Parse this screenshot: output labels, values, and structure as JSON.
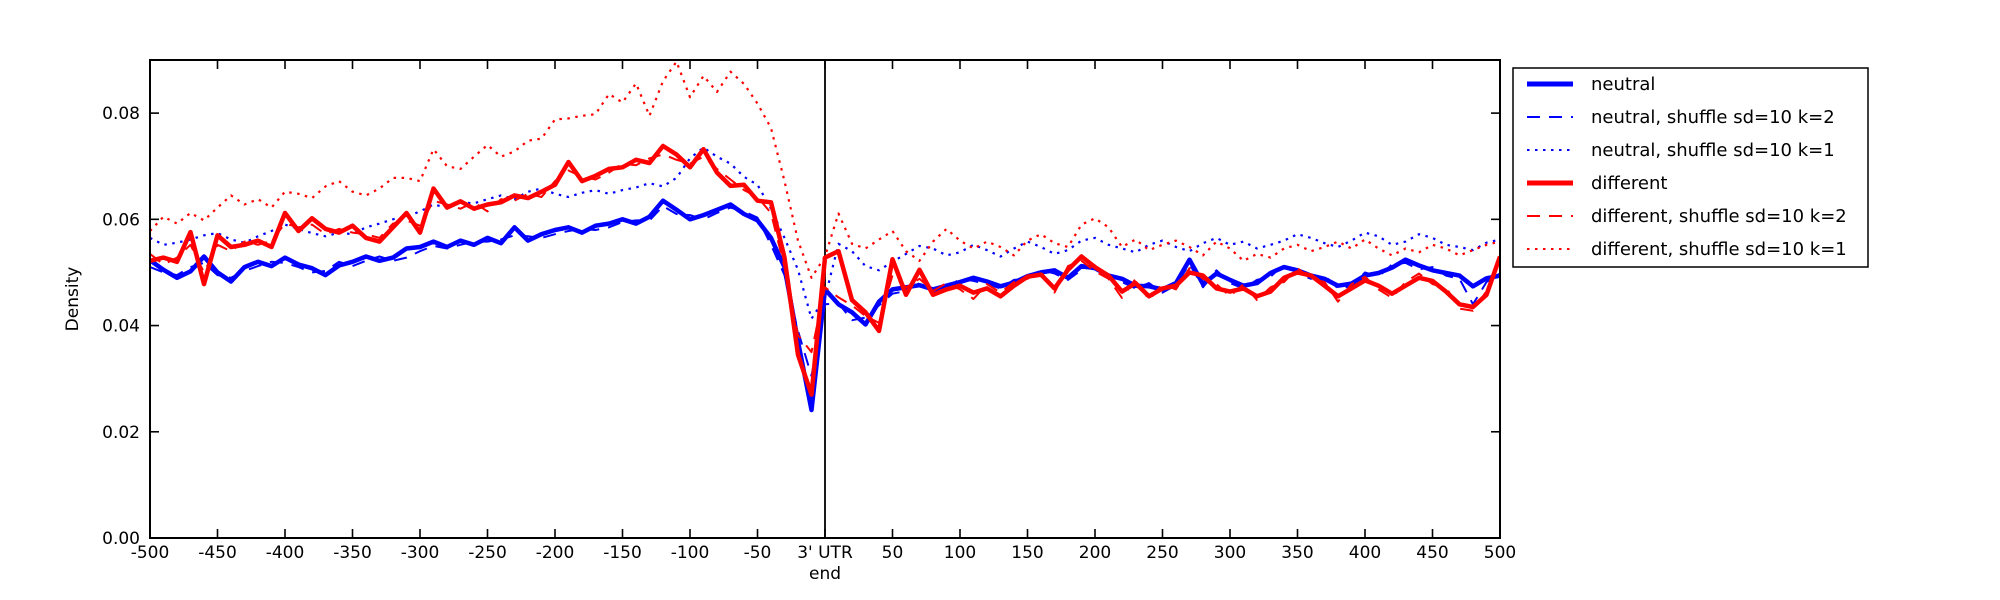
{
  "figure": {
    "background": "#ffffff",
    "axes_color": "#000000"
  },
  "chart_data": {
    "type": "line",
    "title": "",
    "xlabel": "",
    "ylabel": "Density",
    "xlim": [
      -500,
      500
    ],
    "ylim": [
      0,
      0.09
    ],
    "grid": false,
    "vline_x": 0,
    "x_start": -500,
    "x_step": 10,
    "xtick_values": [
      -500,
      -450,
      -400,
      -350,
      -300,
      -250,
      -200,
      -150,
      -100,
      -50,
      0,
      50,
      100,
      150,
      200,
      250,
      300,
      350,
      400,
      450,
      500
    ],
    "xtick_labels": [
      "-500",
      "-450",
      "-400",
      "-350",
      "-300",
      "-250",
      "-200",
      "-150",
      "-100",
      "-50",
      "3' UTR\nend",
      "50",
      "100",
      "150",
      "200",
      "250",
      "300",
      "350",
      "400",
      "450",
      "500"
    ],
    "ytick_values": [
      0.0,
      0.02,
      0.04,
      0.06,
      0.08
    ],
    "ytick_labels": [
      "0.00",
      "0.02",
      "0.04",
      "0.06",
      "0.08"
    ],
    "legend": {
      "position": "outside upper right"
    },
    "series": [
      {
        "name": "neutral",
        "color": "#0000ff",
        "style": "solid",
        "width": 4.5,
        "values": [
          0.0523,
          0.0505,
          0.049,
          0.0502,
          0.053,
          0.05,
          0.0483,
          0.051,
          0.052,
          0.0512,
          0.0528,
          0.0515,
          0.0508,
          0.0495,
          0.0513,
          0.052,
          0.053,
          0.0522,
          0.0528,
          0.0545,
          0.0548,
          0.0558,
          0.0548,
          0.056,
          0.0552,
          0.0565,
          0.0555,
          0.0585,
          0.056,
          0.0572,
          0.058,
          0.0585,
          0.0575,
          0.0588,
          0.0592,
          0.06,
          0.0592,
          0.0605,
          0.0635,
          0.0618,
          0.06,
          0.0608,
          0.0618,
          0.0628,
          0.061,
          0.0598,
          0.0565,
          0.051,
          0.037,
          0.0241,
          0.0468,
          0.044,
          0.0425,
          0.0402,
          0.0445,
          0.0468,
          0.0472,
          0.0476,
          0.0468,
          0.0475,
          0.0482,
          0.049,
          0.0483,
          0.0474,
          0.0481,
          0.0493,
          0.05,
          0.0504,
          0.049,
          0.0512,
          0.0508,
          0.0494,
          0.0488,
          0.0475,
          0.0474,
          0.0468,
          0.048,
          0.0524,
          0.0478,
          0.0498,
          0.0486,
          0.0475,
          0.048,
          0.0499,
          0.051,
          0.0504,
          0.0494,
          0.0488,
          0.0475,
          0.0479,
          0.0494,
          0.0499,
          0.0509,
          0.0524,
          0.0513,
          0.0504,
          0.0499,
          0.0494,
          0.0474,
          0.0489,
          0.0494
        ]
      },
      {
        "name": "neutral, shuffle sd=10 k=2",
        "color": "#0000ff",
        "style": "dashed",
        "width": 2,
        "values": [
          0.051,
          0.05,
          0.0495,
          0.051,
          0.0518,
          0.0495,
          0.049,
          0.0503,
          0.0512,
          0.052,
          0.0518,
          0.051,
          0.05,
          0.0503,
          0.052,
          0.0512,
          0.0522,
          0.053,
          0.0522,
          0.0528,
          0.054,
          0.055,
          0.0545,
          0.0552,
          0.0558,
          0.0558,
          0.0562,
          0.057,
          0.0568,
          0.0565,
          0.0572,
          0.0578,
          0.0582,
          0.058,
          0.0585,
          0.0595,
          0.0598,
          0.0598,
          0.0625,
          0.061,
          0.0608,
          0.06,
          0.0612,
          0.0622,
          0.0615,
          0.0603,
          0.0552,
          0.0495,
          0.039,
          0.0305,
          0.044,
          0.0442,
          0.041,
          0.0415,
          0.0438,
          0.046,
          0.0465,
          0.048,
          0.0462,
          0.047,
          0.0488,
          0.0484,
          0.0478,
          0.047,
          0.0486,
          0.0488,
          0.0505,
          0.0498,
          0.0486,
          0.0505,
          0.0513,
          0.0488,
          0.0482,
          0.047,
          0.048,
          0.0462,
          0.0476,
          0.0516,
          0.0472,
          0.0504,
          0.048,
          0.047,
          0.0486,
          0.0492,
          0.0515,
          0.0498,
          0.0488,
          0.0494,
          0.047,
          0.0474,
          0.05,
          0.0492,
          0.0515,
          0.0518,
          0.0506,
          0.051,
          0.0494,
          0.0488,
          0.044,
          0.0482,
          0.0498
        ]
      },
      {
        "name": "neutral, shuffle sd=10 k=1",
        "color": "#0000ff",
        "style": "dotted",
        "width": 2.2,
        "values": [
          0.0565,
          0.0552,
          0.0556,
          0.0562,
          0.057,
          0.0574,
          0.0562,
          0.0556,
          0.0568,
          0.0578,
          0.059,
          0.0582,
          0.0574,
          0.0568,
          0.0575,
          0.0572,
          0.0585,
          0.0592,
          0.06,
          0.0605,
          0.0615,
          0.0628,
          0.0622,
          0.0632,
          0.063,
          0.0638,
          0.0645,
          0.0638,
          0.0652,
          0.0658,
          0.0648,
          0.0642,
          0.065,
          0.0655,
          0.0648,
          0.0655,
          0.066,
          0.0668,
          0.0662,
          0.0678,
          0.0715,
          0.0735,
          0.0718,
          0.0705,
          0.068,
          0.0665,
          0.062,
          0.0565,
          0.0505,
          0.0413,
          0.0452,
          0.0554,
          0.054,
          0.0512,
          0.0504,
          0.052,
          0.0535,
          0.055,
          0.0545,
          0.0532,
          0.0538,
          0.0552,
          0.0542,
          0.053,
          0.0545,
          0.0558,
          0.0548,
          0.0535,
          0.0542,
          0.056,
          0.0565,
          0.0552,
          0.0545,
          0.0538,
          0.0552,
          0.056,
          0.0548,
          0.054,
          0.0555,
          0.0565,
          0.0552,
          0.0558,
          0.0545,
          0.0552,
          0.056,
          0.0572,
          0.0565,
          0.0555,
          0.0548,
          0.056,
          0.0575,
          0.0568,
          0.0552,
          0.0558,
          0.0572,
          0.0565,
          0.0552,
          0.0548,
          0.0542,
          0.0556,
          0.0562
        ]
      },
      {
        "name": "different",
        "color": "#ff0000",
        "style": "solid",
        "width": 4.5,
        "values": [
          0.0522,
          0.0528,
          0.052,
          0.0576,
          0.0478,
          0.057,
          0.0548,
          0.0552,
          0.056,
          0.0548,
          0.0612,
          0.0578,
          0.0602,
          0.0582,
          0.0575,
          0.0588,
          0.0565,
          0.0558,
          0.0585,
          0.0612,
          0.0575,
          0.0658,
          0.0622,
          0.0634,
          0.062,
          0.0628,
          0.0632,
          0.0645,
          0.064,
          0.0652,
          0.0665,
          0.0708,
          0.0672,
          0.0682,
          0.0695,
          0.0698,
          0.0712,
          0.0706,
          0.0738,
          0.0722,
          0.0698,
          0.0732,
          0.0688,
          0.0663,
          0.0665,
          0.0635,
          0.0632,
          0.0528,
          0.0345,
          0.027,
          0.0528,
          0.054,
          0.0448,
          0.0425,
          0.039,
          0.0525,
          0.0458,
          0.0505,
          0.0458,
          0.0468,
          0.0475,
          0.0462,
          0.047,
          0.0455,
          0.0475,
          0.0492,
          0.0496,
          0.047,
          0.0505,
          0.053,
          0.051,
          0.0494,
          0.0464,
          0.048,
          0.0455,
          0.047,
          0.0475,
          0.05,
          0.0494,
          0.047,
          0.0464,
          0.047,
          0.0455,
          0.0464,
          0.049,
          0.05,
          0.0494,
          0.0475,
          0.0455,
          0.047,
          0.0485,
          0.0475,
          0.046,
          0.0475,
          0.049,
          0.0484,
          0.0464,
          0.044,
          0.0435,
          0.0458,
          0.053
        ]
      },
      {
        "name": "different, shuffle sd=10 k=2",
        "color": "#ff0000",
        "style": "dashed",
        "width": 2,
        "values": [
          0.0535,
          0.0515,
          0.0528,
          0.0552,
          0.05,
          0.0552,
          0.054,
          0.0558,
          0.0552,
          0.056,
          0.0592,
          0.0585,
          0.059,
          0.0572,
          0.0582,
          0.0575,
          0.0572,
          0.0565,
          0.0592,
          0.0598,
          0.0588,
          0.0635,
          0.0628,
          0.062,
          0.0632,
          0.0615,
          0.0638,
          0.0635,
          0.0648,
          0.0642,
          0.0672,
          0.0692,
          0.068,
          0.0675,
          0.0688,
          0.0705,
          0.0702,
          0.0715,
          0.0722,
          0.0712,
          0.0705,
          0.0718,
          0.0695,
          0.0675,
          0.0655,
          0.0642,
          0.0612,
          0.051,
          0.0382,
          0.035,
          0.0472,
          0.0453,
          0.0438,
          0.0418,
          0.0405,
          0.0495,
          0.0472,
          0.0488,
          0.0465,
          0.048,
          0.0468,
          0.045,
          0.0478,
          0.0462,
          0.0482,
          0.0488,
          0.0502,
          0.0462,
          0.0512,
          0.0522,
          0.0502,
          0.0488,
          0.0452,
          0.0488,
          0.0448,
          0.0478,
          0.0468,
          0.0508,
          0.0488,
          0.0478,
          0.0455,
          0.0478,
          0.0448,
          0.0472,
          0.0482,
          0.0508,
          0.0488,
          0.0482,
          0.0445,
          0.0478,
          0.0492,
          0.0468,
          0.0452,
          0.0482,
          0.0498,
          0.0478,
          0.0472,
          0.0432,
          0.0428,
          0.0465,
          0.0522
        ]
      },
      {
        "name": "different, shuffle sd=10 k=1",
        "color": "#ff0000",
        "style": "dotted",
        "width": 2.2,
        "values": [
          0.0578,
          0.0605,
          0.0592,
          0.0612,
          0.0598,
          0.0622,
          0.0645,
          0.0628,
          0.0638,
          0.0622,
          0.0652,
          0.0648,
          0.064,
          0.0662,
          0.0672,
          0.0652,
          0.0645,
          0.0658,
          0.0678,
          0.0678,
          0.0672,
          0.0732,
          0.07,
          0.0695,
          0.0718,
          0.074,
          0.0718,
          0.0728,
          0.0748,
          0.0752,
          0.0788,
          0.079,
          0.0795,
          0.0798,
          0.0836,
          0.082,
          0.0856,
          0.0795,
          0.086,
          0.0897,
          0.083,
          0.087,
          0.084,
          0.0878,
          0.0855,
          0.0818,
          0.0772,
          0.0672,
          0.056,
          0.049,
          0.053,
          0.0611,
          0.0554,
          0.0545,
          0.0562,
          0.0578,
          0.054,
          0.0522,
          0.0558,
          0.0582,
          0.056,
          0.0545,
          0.0558,
          0.0548,
          0.0532,
          0.056,
          0.0572,
          0.0555,
          0.0548,
          0.059,
          0.0602,
          0.0585,
          0.0548,
          0.0562,
          0.0542,
          0.0552,
          0.056,
          0.0548,
          0.0532,
          0.0558,
          0.0545,
          0.0522,
          0.0535,
          0.0528,
          0.0545,
          0.0552,
          0.054,
          0.0548,
          0.0558,
          0.0545,
          0.0562,
          0.0545,
          0.0532,
          0.0545,
          0.0538,
          0.0552,
          0.0545,
          0.0532,
          0.0542,
          0.0552,
          0.0558
        ]
      }
    ]
  }
}
